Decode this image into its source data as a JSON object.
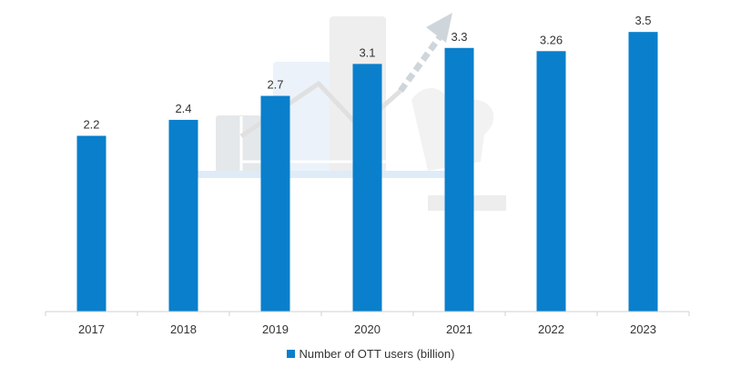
{
  "chart_data": {
    "type": "bar",
    "categories": [
      "2017",
      "2018",
      "2019",
      "2020",
      "2021",
      "2022",
      "2023"
    ],
    "series": [
      {
        "name": "Number of OTT users (billion)",
        "values": [
          2.2,
          2.4,
          2.7,
          3.1,
          3.3,
          3.26,
          3.5
        ]
      }
    ],
    "data_labels": [
      "2.2",
      "2.4",
      "2.7",
      "3.1",
      "3.3",
      "3.26",
      "3.5"
    ],
    "ylim": [
      0,
      3.9
    ],
    "grid": false,
    "legend_position": "bottom-center",
    "colors": {
      "bar": "#0a7fcc",
      "axis": "#d0d0d0",
      "text": "#333333",
      "background_art": "#e6e6e6"
    }
  },
  "legend": {
    "label": "Number of OTT users (billion)"
  }
}
